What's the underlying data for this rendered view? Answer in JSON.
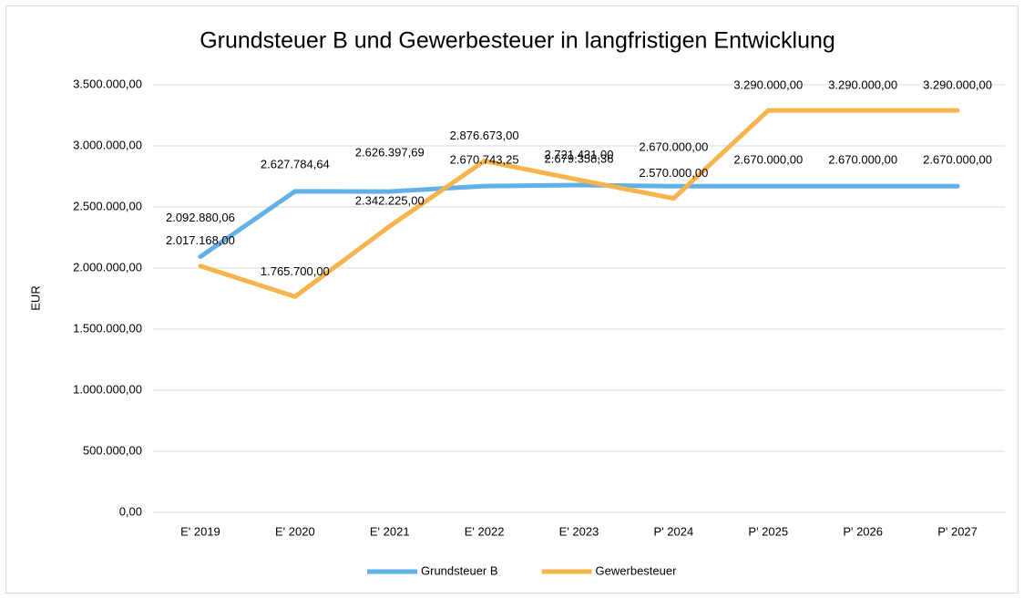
{
  "chart_data": {
    "type": "line",
    "title": "Grundsteuer B und Gewerbesteuer in langfristigen Entwicklung",
    "y_label": "EUR",
    "categories": [
      "E' 2019",
      "E' 2020",
      "E' 2021",
      "E' 2022",
      "E' 2023",
      "P' 2024",
      "P' 2025",
      "P' 2026",
      "P' 2027"
    ],
    "series": [
      {
        "name": "Grundsteuer B",
        "color": "#62b0e8",
        "values": [
          2092880.06,
          2627784.64,
          2626397.69,
          2670743.25,
          2679358.36,
          2670000,
          2670000,
          2670000,
          2670000
        ],
        "value_labels": [
          "2.092.880,06",
          "2.627.784,64",
          "2.626.397,69",
          "2.670.743,25",
          "2.679.358,36",
          "2.670.000,00",
          "2.670.000,00",
          "2.670.000,00",
          "2.670.000,00"
        ]
      },
      {
        "name": "Gewerbesteuer",
        "color": "#f8b44c",
        "values": [
          2017168,
          1765700,
          2342225,
          2876673,
          2721431,
          2570000,
          3290000,
          3290000,
          3290000
        ],
        "value_labels": [
          "2.017.168,00",
          "1.765.700,00",
          "2.342.225,00",
          "2.876.673,00",
          "2.721.431,00",
          "2.570.000,00",
          "3.290.000,00",
          "3.290.000,00",
          "3.290.000,00"
        ]
      }
    ],
    "ylim": [
      0,
      3500000
    ],
    "yticks": [
      {
        "value": 0,
        "label": "0,00"
      },
      {
        "value": 500000,
        "label": "500.000,00"
      },
      {
        "value": 1000000,
        "label": "1.000.000,00"
      },
      {
        "value": 1500000,
        "label": "1.500.000,00"
      },
      {
        "value": 2000000,
        "label": "2.000.000,00"
      },
      {
        "value": 2500000,
        "label": "2.500.000,00"
      },
      {
        "value": 3000000,
        "label": "3.000.000,00"
      },
      {
        "value": 3500000,
        "label": "3.500.000,00"
      }
    ],
    "grid": true,
    "legend": "bottom"
  }
}
